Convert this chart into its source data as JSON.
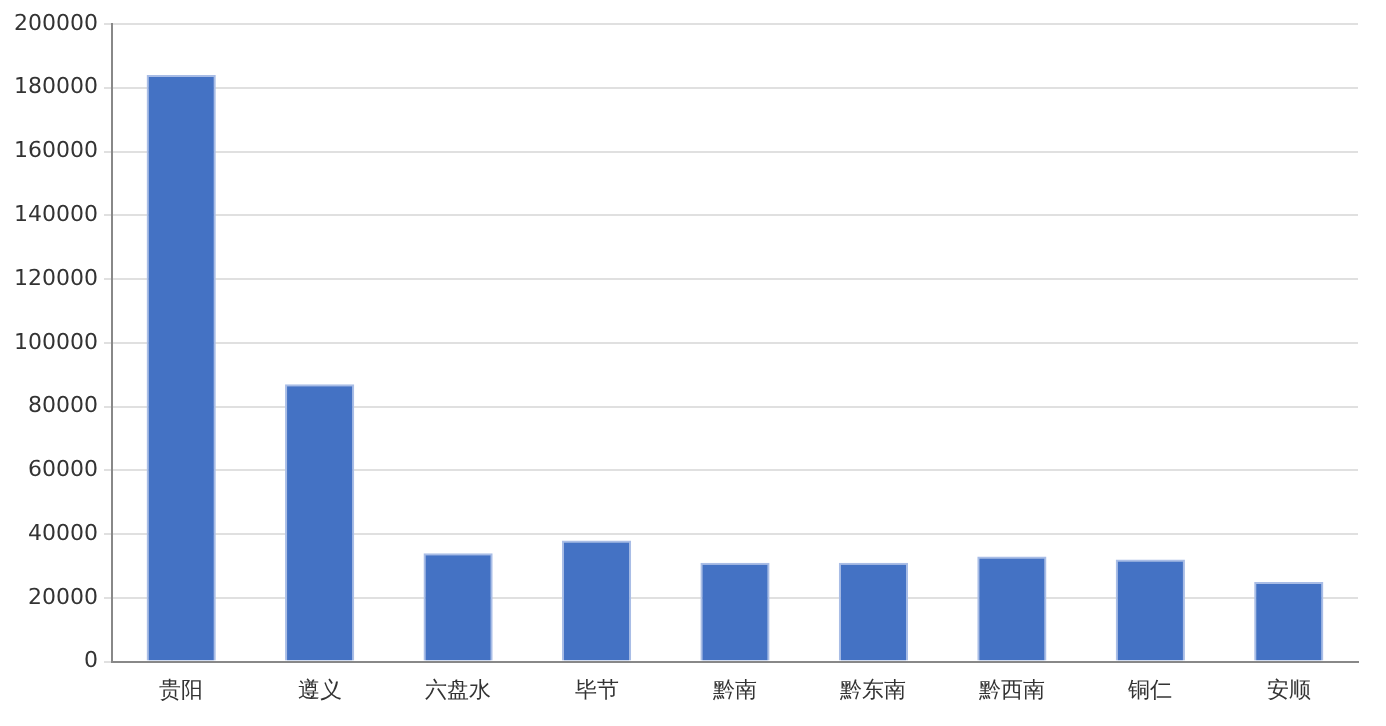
{
  "chart_data": {
    "type": "bar",
    "categories": [
      "贵阳",
      "遵义",
      "六盘水",
      "毕节",
      "黔南",
      "黔东南",
      "黔西南",
      "铜仁",
      "安顺"
    ],
    "values": [
      184000,
      87000,
      34000,
      38000,
      31000,
      31000,
      33000,
      32000,
      25000
    ],
    "color": "#4472c4",
    "ylim": [
      0,
      200000
    ],
    "yticks": [
      0,
      20000,
      40000,
      60000,
      80000,
      100000,
      120000,
      140000,
      160000,
      180000,
      200000
    ],
    "grid": "y",
    "legend": false
  }
}
